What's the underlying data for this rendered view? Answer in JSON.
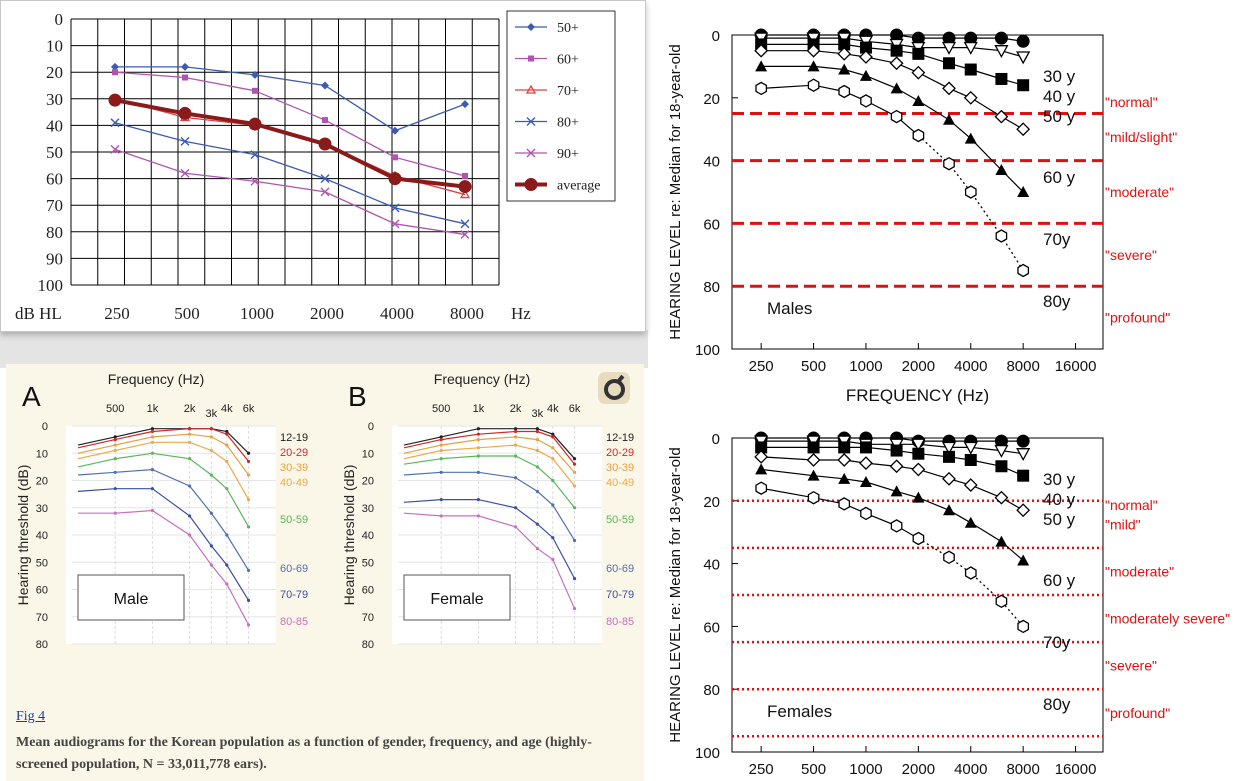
{
  "chart_data": [
    {
      "type": "line",
      "xlabel": "Hz",
      "ylabel": "dB HL",
      "categories": [
        "250",
        "500",
        "1000",
        "2000",
        "4000",
        "8000"
      ],
      "yticks": [
        "0",
        "10",
        "20",
        "30",
        "40",
        "50",
        "60",
        "70",
        "80",
        "90",
        "100"
      ],
      "ylim": [
        0,
        100
      ],
      "y_inverted": true,
      "grid": true,
      "legend_position": "right",
      "series": [
        {
          "name": "50+",
          "color": "#3b5bb5",
          "marker": "diamond",
          "values": [
            18,
            18,
            21,
            25,
            42,
            32
          ]
        },
        {
          "name": "60+",
          "color": "#b054b0",
          "marker": "square",
          "values": [
            20,
            22,
            27,
            38,
            52,
            59
          ]
        },
        {
          "name": "70+",
          "color": "#e04040",
          "marker": "triangle",
          "values": [
            30,
            37,
            40,
            47,
            59,
            66
          ]
        },
        {
          "name": "80+",
          "color": "#3b5bb5",
          "marker": "x",
          "values": [
            39,
            46,
            51,
            60,
            71,
            77
          ]
        },
        {
          "name": "90+",
          "color": "#b054b0",
          "marker": "x",
          "values": [
            49,
            58,
            61,
            65,
            77,
            81
          ]
        },
        {
          "name": "average",
          "color": "#8b1a1a",
          "marker": "circle",
          "values": [
            30.5,
            35.5,
            39.5,
            47,
            60,
            63
          ]
        }
      ]
    },
    {
      "type": "line",
      "panel_label": "A",
      "title": "Frequency (Hz)",
      "ylabel": "Hearing threshold (dB)",
      "box_label": "Male",
      "xticks": [
        "500",
        "1k",
        "2k",
        "3k",
        "4k",
        "6k"
      ],
      "x_positions_hz": [
        500,
        1000,
        2000,
        3000,
        4000,
        6000
      ],
      "yticks": [
        "0",
        "10",
        "20",
        "30",
        "40",
        "50",
        "60",
        "70",
        "80"
      ],
      "ylim": [
        0,
        80
      ],
      "y_inverted": true,
      "x": [
        250,
        500,
        1000,
        2000,
        3000,
        4000,
        6000
      ],
      "series": [
        {
          "name": "12-19",
          "color": "#222222",
          "values": [
            7,
            4,
            1,
            1,
            1,
            2,
            10
          ]
        },
        {
          "name": "20-29",
          "color": "#d02828",
          "values": [
            8,
            5,
            2,
            1,
            1,
            3,
            13
          ]
        },
        {
          "name": "30-39",
          "color": "#e8a040",
          "values": [
            10,
            7,
            4,
            3,
            4,
            7,
            18
          ]
        },
        {
          "name": "40-49",
          "color": "#f0a848",
          "values": [
            12,
            9,
            6,
            6,
            9,
            13,
            27
          ]
        },
        {
          "name": "50-59",
          "color": "#58b858",
          "values": [
            15,
            12,
            10,
            12,
            18,
            23,
            37
          ]
        },
        {
          "name": "60-69",
          "color": "#5070b0",
          "values": [
            18,
            17,
            16,
            22,
            32,
            40,
            53
          ]
        },
        {
          "name": "70-79",
          "color": "#3a50a0",
          "values": [
            24,
            23,
            23,
            33,
            44,
            51,
            64
          ]
        },
        {
          "name": "80-85",
          "color": "#c870c0",
          "values": [
            32,
            32,
            31,
            40,
            51,
            58,
            73
          ]
        }
      ]
    },
    {
      "type": "line",
      "panel_label": "B",
      "title": "Frequency (Hz)",
      "ylabel": "Hearing threshold (dB)",
      "box_label": "Female",
      "xticks": [
        "500",
        "1k",
        "2k",
        "3k",
        "4k",
        "6k"
      ],
      "x_positions_hz": [
        500,
        1000,
        2000,
        3000,
        4000,
        6000
      ],
      "yticks": [
        "0",
        "10",
        "20",
        "30",
        "40",
        "50",
        "60",
        "70",
        "80"
      ],
      "ylim": [
        0,
        80
      ],
      "y_inverted": true,
      "x": [
        250,
        500,
        1000,
        2000,
        3000,
        4000,
        6000
      ],
      "series": [
        {
          "name": "12-19",
          "color": "#222222",
          "values": [
            7,
            4,
            1,
            1,
            1,
            3,
            12
          ]
        },
        {
          "name": "20-29",
          "color": "#d02828",
          "values": [
            8,
            5,
            3,
            2,
            2,
            4,
            14
          ]
        },
        {
          "name": "30-39",
          "color": "#e8a040",
          "values": [
            10,
            7,
            5,
            4,
            5,
            8,
            17
          ]
        },
        {
          "name": "40-49",
          "color": "#f0a848",
          "values": [
            12,
            9,
            8,
            7,
            9,
            12,
            22
          ]
        },
        {
          "name": "50-59",
          "color": "#58b858",
          "values": [
            14,
            12,
            11,
            11,
            15,
            20,
            30
          ]
        },
        {
          "name": "60-69",
          "color": "#5070b0",
          "values": [
            18,
            17,
            17,
            19,
            24,
            29,
            42
          ]
        },
        {
          "name": "70-79",
          "color": "#3a50a0",
          "values": [
            28,
            27,
            27,
            30,
            36,
            41,
            56
          ]
        },
        {
          "name": "80-85",
          "color": "#c870c0",
          "values": [
            32,
            33,
            33,
            37,
            45,
            49,
            67
          ]
        }
      ]
    },
    {
      "type": "line",
      "title": "",
      "xlabel": "FREQUENCY (Hz)",
      "ylabel": "HEARING LEVEL re: Median for 18-year-old",
      "box_label": "Males",
      "x_log": true,
      "xticks": [
        "250",
        "500",
        "1000",
        "2000",
        "4000",
        "8000",
        "16000"
      ],
      "xlim": [
        170,
        23000
      ],
      "yticks": [
        "0",
        "20",
        "40",
        "60",
        "80",
        "100"
      ],
      "ylim": [
        0,
        100
      ],
      "y_inverted": true,
      "severity_lines": [
        {
          "y": 25,
          "label": "\"mild/slight\""
        },
        {
          "y": 40,
          "label": "\"moderate\""
        },
        {
          "y": 60,
          "label": "\"severe\""
        },
        {
          "y": 80,
          "label": "\"profound\""
        }
      ],
      "severity_top_label": "\"normal\"",
      "severity_style": "dashed",
      "series": [
        {
          "name": "30 y",
          "marker": "filled-circle",
          "x": [
            250,
            500,
            750,
            1000,
            1500,
            2000,
            3000,
            4000,
            6000,
            8000
          ],
          "values": [
            0,
            0,
            0,
            0,
            0,
            1,
            1,
            1,
            1,
            2
          ]
        },
        {
          "name": "40 y",
          "marker": "open-triangle-down",
          "x": [
            250,
            500,
            750,
            1000,
            1500,
            2000,
            3000,
            4000,
            6000,
            8000
          ],
          "values": [
            1,
            1,
            1,
            2,
            3,
            4,
            4,
            4,
            5,
            7
          ]
        },
        {
          "name": "50 y",
          "marker": "filled-square",
          "x": [
            250,
            500,
            750,
            1000,
            1500,
            2000,
            3000,
            4000,
            6000,
            8000
          ],
          "values": [
            3,
            3,
            3,
            4,
            5,
            6,
            9,
            11,
            14,
            16
          ]
        },
        {
          "name": "60 y",
          "marker": "open-diamond",
          "x": [
            250,
            500,
            750,
            1000,
            1500,
            2000,
            3000,
            4000,
            6000,
            8000
          ],
          "values": [
            5,
            5,
            6,
            7,
            9,
            12,
            17,
            20,
            26,
            30
          ]
        },
        {
          "name": "70y",
          "marker": "filled-triangle",
          "x": [
            250,
            500,
            750,
            1000,
            1500,
            2000,
            3000,
            4000,
            6000,
            8000
          ],
          "values": [
            10,
            10,
            11,
            13,
            17,
            21,
            27,
            33,
            43,
            50
          ]
        },
        {
          "name": "80y",
          "marker": "open-hexagon",
          "x": [
            250,
            500,
            750,
            1000,
            1500,
            2000,
            3000,
            4000,
            6000,
            8000
          ],
          "values": [
            17,
            16,
            18,
            21,
            26,
            32,
            41,
            50,
            64,
            75
          ]
        }
      ]
    },
    {
      "type": "line",
      "title": "",
      "ylabel": "HEARING LEVEL re: Median for 18-year-old",
      "box_label": "Females",
      "x_log": true,
      "xticks": [
        "250",
        "500",
        "1000",
        "2000",
        "4000",
        "8000",
        "16000"
      ],
      "xlim": [
        170,
        23000
      ],
      "yticks": [
        "0",
        "20",
        "40",
        "60",
        "80",
        "100"
      ],
      "ylim": [
        0,
        100
      ],
      "y_inverted": true,
      "severity_lines": [
        {
          "y": 20,
          "label": "\"mild\""
        },
        {
          "y": 35,
          "label": "\"moderate\""
        },
        {
          "y": 50,
          "label": "\"moderately severe\""
        },
        {
          "y": 65,
          "label": "\"severe\""
        },
        {
          "y": 80,
          "label": "\"profound\""
        },
        {
          "y": 95,
          "label": ""
        }
      ],
      "severity_top_label": "\"normal\"",
      "severity_style": "dotted",
      "series": [
        {
          "name": "30 y",
          "marker": "filled-circle",
          "x": [
            250,
            500,
            750,
            1000,
            1500,
            2000,
            3000,
            4000,
            6000,
            8000
          ],
          "values": [
            0,
            0,
            0,
            0,
            0,
            1,
            1,
            1,
            1,
            1
          ]
        },
        {
          "name": "40 y",
          "marker": "open-triangle-down",
          "x": [
            250,
            500,
            750,
            1000,
            1500,
            2000,
            3000,
            4000,
            6000,
            8000
          ],
          "values": [
            1,
            1,
            1,
            2,
            2,
            2,
            3,
            3,
            4,
            5
          ]
        },
        {
          "name": "50 y",
          "marker": "filled-square",
          "x": [
            250,
            500,
            750,
            1000,
            1500,
            2000,
            3000,
            4000,
            6000,
            8000
          ],
          "values": [
            3,
            3,
            3,
            3,
            4,
            5,
            6,
            7,
            9,
            12
          ]
        },
        {
          "name": "60 y",
          "marker": "open-diamond",
          "x": [
            250,
            500,
            750,
            1000,
            1500,
            2000,
            3000,
            4000,
            6000,
            8000
          ],
          "values": [
            6,
            7,
            7,
            8,
            9,
            10,
            13,
            15,
            19,
            23
          ]
        },
        {
          "name": "70y",
          "marker": "filled-triangle",
          "x": [
            250,
            500,
            750,
            1000,
            1500,
            2000,
            3000,
            4000,
            6000,
            8000
          ],
          "values": [
            10,
            12,
            13,
            14,
            17,
            19,
            23,
            27,
            33,
            39
          ]
        },
        {
          "name": "80y",
          "marker": "open-hexagon",
          "x": [
            250,
            500,
            750,
            1000,
            1500,
            2000,
            3000,
            4000,
            6000,
            8000
          ],
          "values": [
            16,
            19,
            21,
            24,
            28,
            32,
            38,
            43,
            52,
            60
          ]
        }
      ]
    }
  ],
  "caption": {
    "link": "Fig 4",
    "text": "Mean audiograms for the Korean population as a function of gender, frequency, and age (highly-screened population, N = 33,011,778 ears)."
  },
  "colors": {
    "severity_line": "#e01010",
    "text": "#111111"
  }
}
